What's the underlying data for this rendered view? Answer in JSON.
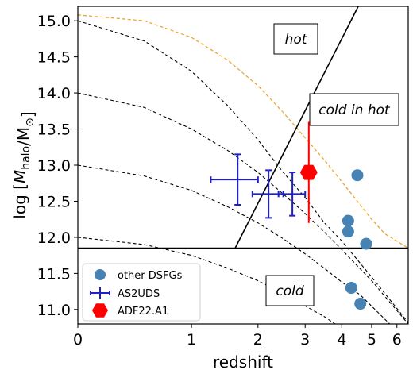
{
  "chart_data": {
    "type": "scatter",
    "xlabel": "redshift",
    "ylabel": "log [M_halo/M_⊙]",
    "xlim": [
      0,
      6.5
    ],
    "ylim": [
      10.8,
      15.2
    ],
    "x_scale": "log(1+z)",
    "x_tick_labels": [
      "0",
      "1",
      "2",
      "3",
      "4",
      "5",
      "6"
    ],
    "y_tick_labels": [
      "11.0",
      "11.5",
      "12.0",
      "12.5",
      "13.0",
      "13.5",
      "14.0",
      "14.5",
      "15.0"
    ],
    "region_labels": [
      "hot",
      "cold in hot",
      "cold"
    ],
    "horizontal_line_y": 11.85,
    "diagonal_line": [
      [
        1.61,
        11.85
      ],
      [
        4.53,
        15.2
      ]
    ],
    "dashed_black_tracks": [
      [
        [
          0,
          15.0
        ],
        [
          0.5,
          14.72
        ],
        [
          1.0,
          14.3
        ],
        [
          1.5,
          13.82
        ],
        [
          2.0,
          13.35
        ],
        [
          2.5,
          12.9
        ],
        [
          3.0,
          12.55
        ],
        [
          3.5,
          12.2
        ],
        [
          4.0,
          11.95
        ],
        [
          5.0,
          11.45
        ],
        [
          6.5,
          10.82
        ]
      ],
      [
        [
          0,
          14.0
        ],
        [
          0.5,
          13.8
        ],
        [
          1.0,
          13.5
        ],
        [
          1.5,
          13.2
        ],
        [
          2.0,
          12.9
        ],
        [
          2.5,
          12.6
        ],
        [
          3.0,
          12.33
        ],
        [
          3.5,
          12.07
        ],
        [
          4.0,
          11.83
        ],
        [
          5.0,
          11.4
        ],
        [
          6.5,
          10.8
        ]
      ],
      [
        [
          0,
          13.0
        ],
        [
          0.5,
          12.85
        ],
        [
          1.0,
          12.65
        ],
        [
          1.5,
          12.42
        ],
        [
          2.0,
          12.2
        ],
        [
          2.5,
          11.98
        ],
        [
          3.0,
          11.77
        ],
        [
          3.5,
          11.57
        ],
        [
          4.0,
          11.38
        ],
        [
          4.6,
          11.2
        ],
        [
          5.7,
          10.8
        ]
      ],
      [
        [
          0,
          12.0
        ],
        [
          0.5,
          11.9
        ],
        [
          1.0,
          11.75
        ],
        [
          1.5,
          11.57
        ],
        [
          2.0,
          11.4
        ],
        [
          2.5,
          11.22
        ],
        [
          3.0,
          11.05
        ],
        [
          3.5,
          10.9
        ],
        [
          3.8,
          10.8
        ]
      ]
    ],
    "dashed_orange_track": [
      [
        0,
        15.08
      ],
      [
        0.5,
        15.0
      ],
      [
        1.0,
        14.77
      ],
      [
        1.5,
        14.45
      ],
      [
        2.0,
        14.1
      ],
      [
        2.5,
        13.73
      ],
      [
        3.0,
        13.38
      ],
      [
        3.5,
        13.07
      ],
      [
        4.0,
        12.77
      ],
      [
        4.5,
        12.5
      ],
      [
        5.0,
        12.25
      ],
      [
        5.5,
        12.05
      ],
      [
        6.5,
        11.85
      ]
    ],
    "series": [
      {
        "name": "other DSFGs",
        "color": "#4682b4",
        "marker": "circle",
        "points": [
          [
            4.5,
            12.86
          ],
          [
            4.2,
            12.23
          ],
          [
            4.2,
            12.08
          ],
          [
            4.8,
            11.91
          ],
          [
            4.3,
            11.3
          ],
          [
            4.6,
            11.08
          ]
        ]
      },
      {
        "name": "AS2UDS",
        "color": "#1f1fc8",
        "marker": "errorbar",
        "points": [
          {
            "x": 1.65,
            "y": 12.8,
            "x_err": [
              0.4,
              0.35
            ],
            "y_err": [
              0.35,
              0.35
            ]
          },
          {
            "x": 2.2,
            "y": 12.6,
            "x_err": [
              0.3,
              0.3
            ],
            "y_err": [
              0.33,
              0.33
            ]
          },
          {
            "x": 2.7,
            "y": 12.6,
            "x_err": [
              0.3,
              0.3
            ],
            "y_err": [
              0.3,
              0.3
            ]
          }
        ]
      },
      {
        "name": "ADF22.A1",
        "color": "#ff0000",
        "marker": "hexagon",
        "points": [
          {
            "x": 3.09,
            "y": 12.9,
            "y_err": [
              0.7,
              0.7
            ]
          }
        ]
      }
    ],
    "legend_position": "lower-left"
  }
}
